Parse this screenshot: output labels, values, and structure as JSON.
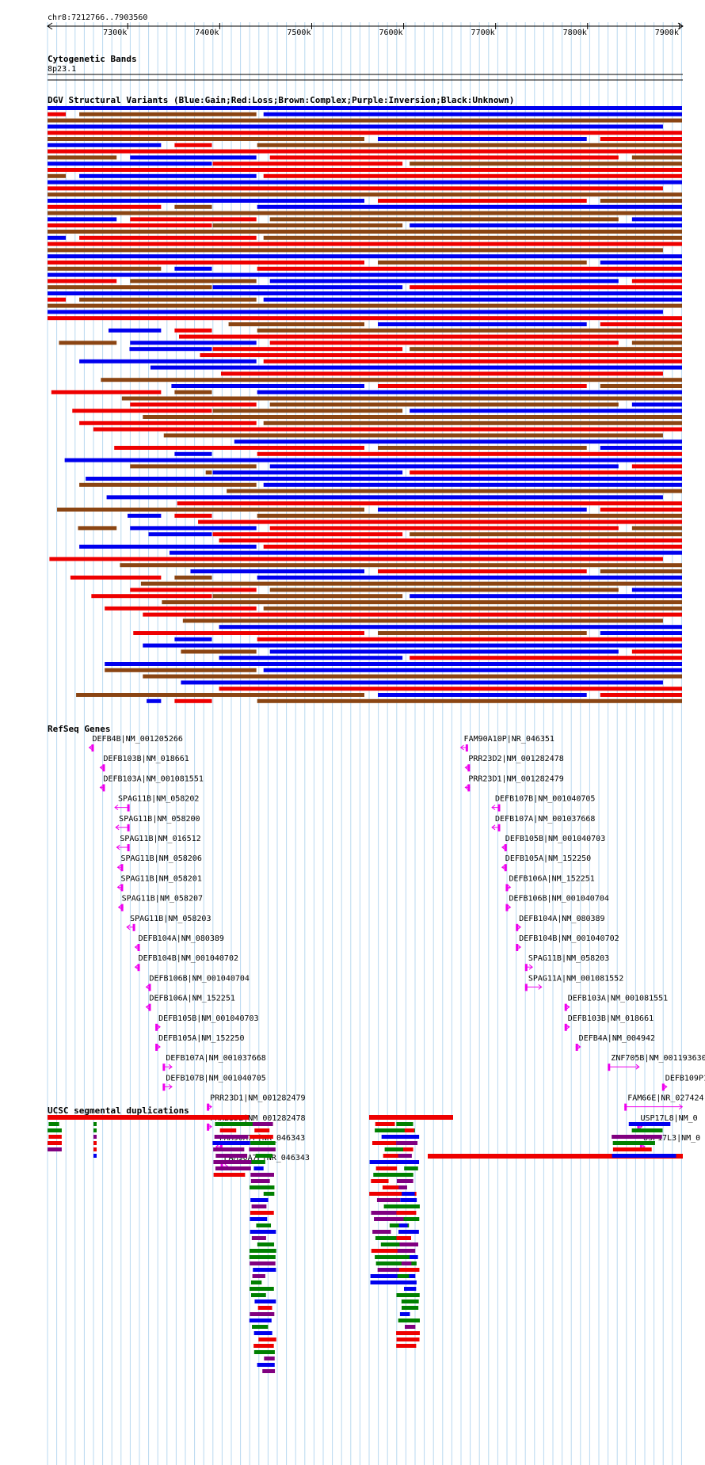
{
  "region": {
    "label": "chr8:7212766..7903560",
    "start": 7212766,
    "end": 7903560
  },
  "ruler": {
    "ticks": [
      "7300k",
      "7400k",
      "7500k",
      "7600k",
      "7700k",
      "7800k",
      "7900k"
    ],
    "tick_values": [
      7300000,
      7400000,
      7500000,
      7600000,
      7700000,
      7800000,
      7900000
    ]
  },
  "colors": {
    "gain": "#0000ee",
    "loss": "#ee0000",
    "complex": "#8b4513",
    "inversion": "#800080",
    "gene": "#ee00ee",
    "grid": "#b8d8f0",
    "green": "#008000",
    "line": "#000000"
  },
  "tracks": {
    "cytoband": {
      "title": "Cytogenetic Bands",
      "band": "8p23.1"
    },
    "dgv": {
      "title": "DGV Structural Variants (Blue:Gain;Red:Loss;Brown:Complex;Purple:Inversion;Black:Unknown)"
    },
    "refseq": {
      "title": "RefSeq Genes",
      "genes": [
        {
          "label": "DEFB4B|NM_001205266",
          "start": 7258000,
          "end": 7262000,
          "strand": "-"
        },
        {
          "label": "DEFB103B|NM_018661",
          "start": 7270000,
          "end": 7272000,
          "strand": "-"
        },
        {
          "label": "DEFB103A|NM_001081551",
          "start": 7270000,
          "end": 7272000,
          "strand": "-"
        },
        {
          "label": "SPAG11B|NM_058202",
          "start": 7286000,
          "end": 7302000,
          "strand": "-"
        },
        {
          "label": "SPAG11B|NM_058200",
          "start": 7287000,
          "end": 7302000,
          "strand": "-"
        },
        {
          "label": "SPAG11B|NM_016512",
          "start": 7288000,
          "end": 7302000,
          "strand": "-"
        },
        {
          "label": "SPAG11B|NM_058206",
          "start": 7289000,
          "end": 7295000,
          "strand": "-"
        },
        {
          "label": "SPAG11B|NM_058201",
          "start": 7289000,
          "end": 7295000,
          "strand": "-"
        },
        {
          "label": "SPAG11B|NM_058207",
          "start": 7290000,
          "end": 7295000,
          "strand": "-"
        },
        {
          "label": "SPAG11B|NM_058203",
          "start": 7299000,
          "end": 7308000,
          "strand": "-"
        },
        {
          "label": "DEFB104A|NM_080389",
          "start": 7308000,
          "end": 7313000,
          "strand": "-"
        },
        {
          "label": "DEFB104B|NM_001040702",
          "start": 7308000,
          "end": 7313000,
          "strand": "-"
        },
        {
          "label": "DEFB106B|NM_001040704",
          "start": 7320000,
          "end": 7324000,
          "strand": "-"
        },
        {
          "label": "DEFB106A|NM_152251",
          "start": 7320000,
          "end": 7324000,
          "strand": "-"
        },
        {
          "label": "DEFB105B|NM_001040703",
          "start": 7330000,
          "end": 7333000,
          "strand": "+"
        },
        {
          "label": "DEFB105A|NM_152250",
          "start": 7330000,
          "end": 7333000,
          "strand": "+"
        },
        {
          "label": "DEFB107A|NM_001037668",
          "start": 7338000,
          "end": 7348000,
          "strand": "+"
        },
        {
          "label": "DEFB107B|NM_001040705",
          "start": 7338000,
          "end": 7348000,
          "strand": "+"
        },
        {
          "label": "PRR23D1|NM_001282479",
          "start": 7386000,
          "end": 7389000,
          "strand": "+"
        },
        {
          "label": "PRR23D2|NM_001282478",
          "start": 7386000,
          "end": 7389000,
          "strand": "+"
        },
        {
          "label": "FAM90A7P|NR_046343",
          "start": 7396000,
          "end": 7403000,
          "strand": "-"
        },
        {
          "label": "FAM90A7P|NR_046343",
          "start": 7401000,
          "end": 7409000,
          "strand": "+"
        },
        {
          "label": "FAM90A10P|NR_046351",
          "start": 7662000,
          "end": 7670000,
          "strand": "-"
        },
        {
          "label": "PRR23D2|NM_001282478",
          "start": 7667000,
          "end": 7670000,
          "strand": "-"
        },
        {
          "label": "PRR23D1|NM_001282479",
          "start": 7667000,
          "end": 7670000,
          "strand": "-"
        },
        {
          "label": "DEFB107B|NM_001040705",
          "start": 7696000,
          "end": 7705000,
          "strand": "-"
        },
        {
          "label": "DEFB107A|NM_001037668",
          "start": 7696000,
          "end": 7705000,
          "strand": "-"
        },
        {
          "label": "DEFB105B|NM_001040703",
          "start": 7707000,
          "end": 7710000,
          "strand": "-"
        },
        {
          "label": "DEFB105A|NM_152250",
          "start": 7707000,
          "end": 7710000,
          "strand": "-"
        },
        {
          "label": "DEFB106A|NM_152251",
          "start": 7711000,
          "end": 7714000,
          "strand": "+"
        },
        {
          "label": "DEFB106B|NM_001040704",
          "start": 7711000,
          "end": 7714000,
          "strand": "+"
        },
        {
          "label": "DEFB104A|NM_080389",
          "start": 7722000,
          "end": 7726000,
          "strand": "+"
        },
        {
          "label": "DEFB104B|NM_001040702",
          "start": 7722000,
          "end": 7726000,
          "strand": "+"
        },
        {
          "label": "SPAG11B|NM_058203",
          "start": 7732000,
          "end": 7740000,
          "strand": "+"
        },
        {
          "label": "SPAG11A|NM_001081552",
          "start": 7732000,
          "end": 7750000,
          "strand": "+"
        },
        {
          "label": "DEFB103A|NM_001081551",
          "start": 7775000,
          "end": 7777000,
          "strand": "+"
        },
        {
          "label": "DEFB103B|NM_018661",
          "start": 7775000,
          "end": 7777000,
          "strand": "+"
        },
        {
          "label": "DEFB4A|NM_004942",
          "start": 7787000,
          "end": 7790000,
          "strand": "+"
        },
        {
          "label": "ZNF705B|NM_001193630",
          "start": 7822000,
          "end": 7856000,
          "strand": "+"
        },
        {
          "label": "DEFB109P1",
          "start": 7881000,
          "end": 7885000,
          "strand": "+"
        },
        {
          "label": "FAM66E|NR_027424",
          "start": 7840000,
          "end": 7903000,
          "strand": "+"
        },
        {
          "label": "USP17L8|NM_0",
          "start": 7854000,
          "end": 7858000,
          "strand": "+"
        },
        {
          "label": "USP17L3|NM_0",
          "start": 7857000,
          "end": 7861000,
          "strand": "+"
        }
      ]
    },
    "segdup": {
      "title": "UCSC segmental duplications"
    }
  }
}
